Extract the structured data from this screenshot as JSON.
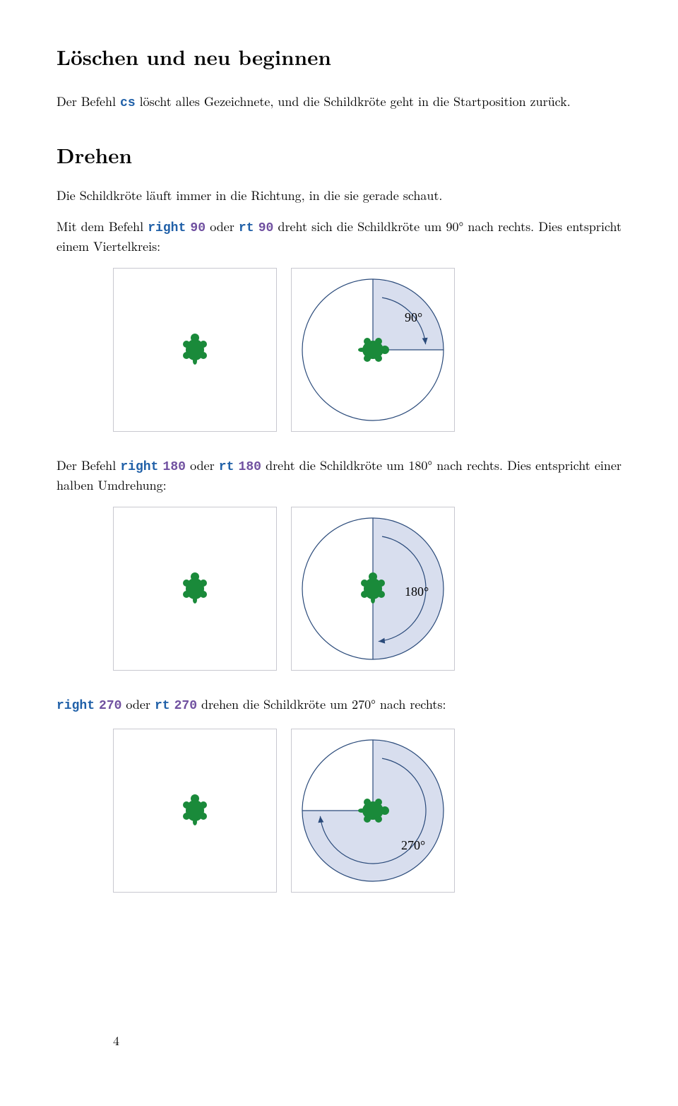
{
  "heading1": "Löschen und neu beginnen",
  "para1_pre": "Der Befehl ",
  "para1_cmd": "cs",
  "para1_post": " löscht alles Gezeichnete, und die Schildkröte geht in die Startposition zurück.",
  "heading2": "Drehen",
  "para2": "Die Schildkröte läuft immer in die Richtung, in die sie gerade schaut.",
  "para3_pre": "Mit dem Befehl ",
  "para3_cmd1": "right",
  "para3_mid1": " ",
  "para3_arg1": "90",
  "para3_mid2": " oder ",
  "para3_cmd2": "rt",
  "para3_mid3": " ",
  "para3_arg2": "90",
  "para3_post": " dreht sich die Schildkröte um 90° nach rechts. Dies entspricht einem Viertelkreis:",
  "para4_pre": "Der Befehl ",
  "para4_cmd1": "right",
  "para4_mid1": " ",
  "para4_arg1": "180",
  "para4_mid2": " oder ",
  "para4_cmd2": "rt",
  "para4_mid3": " ",
  "para4_arg2": "180",
  "para4_post": " dreht die Schildkröte um 180° nach rechts. Dies entspricht einer halben Umdrehung:",
  "para5_cmd1": "right",
  "para5_mid1": " ",
  "para5_arg1": "270",
  "para5_mid2": " oder ",
  "para5_cmd2": "rt",
  "para5_mid3": " ",
  "para5_arg2": "270",
  "para5_post": " drehen die Schildkröte um 270° nach rechts:",
  "page_number": "4",
  "colors": {
    "turtle": "#1a8a3a",
    "circle_stroke": "#2a4a7a",
    "sector_fill": "#d8deee",
    "arc_stroke": "#2a4a7a",
    "box_border": "#c8c8d0",
    "code_blue": "#2060a8",
    "code_purple": "#7050a0",
    "text": "#000000",
    "bg": "#ffffff"
  },
  "diagrams": {
    "turtle_left_rotation": 0,
    "d90": {
      "angle": 90,
      "label": "90°",
      "turtle_rotation": 90
    },
    "d180": {
      "angle": 180,
      "label": "180°",
      "turtle_rotation": 0
    },
    "d270": {
      "angle": 270,
      "label": "270°",
      "turtle_rotation": 90
    }
  },
  "diagram_style": {
    "circle_radius": 100,
    "inner_arc_radius": 75,
    "box_size": 230,
    "stroke_width": 1.2,
    "label_fontsize": 18
  }
}
